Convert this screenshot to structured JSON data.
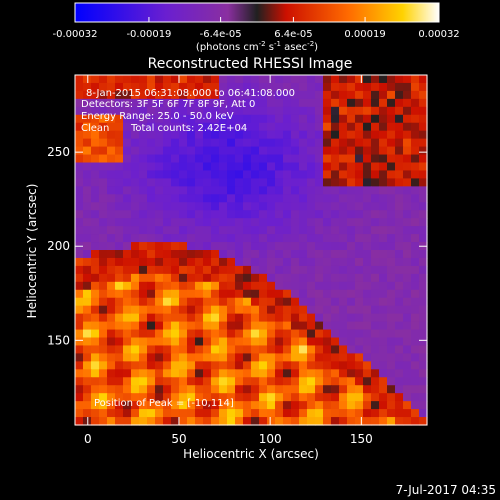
{
  "chart_data": {
    "type": "heatmap",
    "title": "Reconstructed RHESSI Image",
    "xlabel": "Heliocentric X (arcsec)",
    "ylabel": "Heliocentric Y (arcsec)",
    "xlim": [
      -7,
      186
    ],
    "ylim": [
      105,
      291
    ],
    "x_ticks": [
      0,
      50,
      100,
      150
    ],
    "y_ticks": [
      150,
      200,
      250
    ],
    "colorbar": {
      "min": -0.00032,
      "max": 0.00032,
      "tick_labels": [
        "-0.00032",
        "-0.00019",
        "-6.4e-05",
        "6.4e-05",
        "0.00019",
        "0.00032"
      ],
      "tick_values": [
        -0.00032,
        -0.00019,
        -6.4e-05,
        6.4e-05,
        0.00019,
        0.00032
      ],
      "unit_label_parts": [
        "(photons cm",
        "-2",
        " s",
        "-1",
        " asec",
        "-2",
        ")"
      ],
      "colors": [
        "#0000ff",
        "#6a1fd0",
        "#8a2fa0",
        "#202020",
        "#cc1000",
        "#ff6a00",
        "#ffd200",
        "#ffffff"
      ]
    },
    "annotations": {
      "time_range": "8-Jan-2015 06:31:08.000 to 06:41:08.000",
      "detectors": "Detectors: 3F 5F 6F 7F 8F 9F, Att 0",
      "energy_range": "Energy Range: 25.0 - 50.0 keV",
      "clean": "Clean",
      "total_counts": "Total counts: 2.42E+04",
      "peak_position": "Position of Peak = [-10,114]",
      "timestamp": "7-Jul-2017 04:35"
    },
    "grid": false
  }
}
